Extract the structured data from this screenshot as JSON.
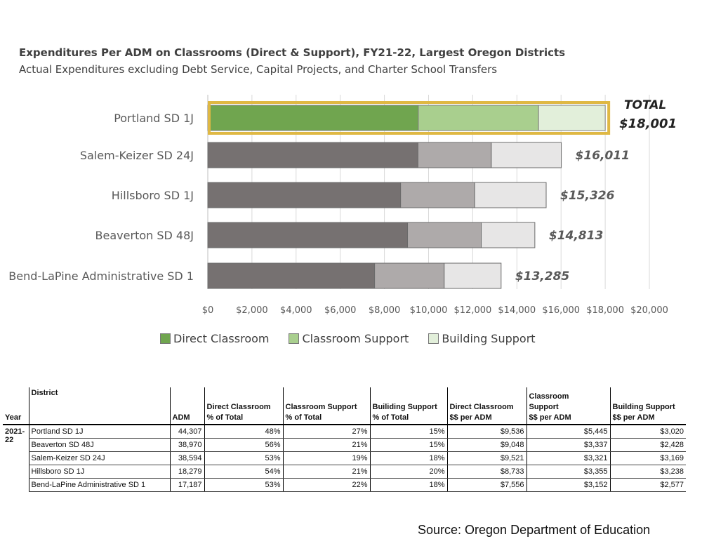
{
  "colors": {
    "highlight_direct": "#70a54f",
    "highlight_classroom": "#a9cf8e",
    "highlight_building": "#e2efda",
    "gray_direct": "#767171",
    "gray_classroom": "#aeaaaa",
    "gray_building": "#e7e6e6",
    "highlight_border": "#dfb844",
    "label_color": "#595959"
  },
  "chart_data": {
    "type": "bar",
    "orientation": "horizontal",
    "stacked": true,
    "title": "Expenditures Per ADM on Classrooms (Direct & Support), FY21-22, Largest Oregon Districts",
    "subtitle": "Actual Expenditures excluding Debt Service, Capital Projects, and Charter School Transfers",
    "categories": [
      "Portland SD 1J",
      "Salem-Keizer SD 24J",
      "Hillsboro SD 1J",
      "Beaverton SD 48J",
      "Bend-LaPine Administrative SD 1"
    ],
    "series": [
      {
        "name": "Direct Classroom",
        "values": [
          9536,
          9521,
          8733,
          9048,
          7556
        ]
      },
      {
        "name": "Classroom Support",
        "values": [
          5445,
          3321,
          3355,
          3337,
          3152
        ]
      },
      {
        "name": "Building Support",
        "values": [
          3020,
          3169,
          3238,
          2428,
          2577
        ]
      }
    ],
    "total_labels": [
      "$18,001",
      "$16,011",
      "$15,326",
      "$14,813",
      "$13,285"
    ],
    "total_caption": "TOTAL",
    "highlighted_category": "Portland SD 1J",
    "xlim": [
      0,
      20000
    ],
    "xticks": [
      0,
      2000,
      4000,
      6000,
      8000,
      10000,
      12000,
      14000,
      16000,
      18000,
      20000
    ],
    "xtick_labels": [
      "$0",
      "$2,000",
      "$4,000",
      "$6,000",
      "$8,000",
      "$10,000",
      "$12,000",
      "$14,000",
      "$16,000",
      "$18,000",
      "$20,000"
    ],
    "grid": true,
    "legend_position": "bottom",
    "xlabel": "",
    "ylabel": ""
  },
  "legend": [
    "Direct Classroom",
    "Classroom Support",
    "Building Support"
  ],
  "table": {
    "headers": {
      "year": "Year",
      "district": "District",
      "adm": "ADM",
      "direct_pct": [
        "Direct Classroom",
        "% of Total"
      ],
      "class_pct": [
        "Classroom Support",
        "% of Total"
      ],
      "build_pct": [
        "Builiding Support",
        "% of Total"
      ],
      "direct_adm": [
        "Direct Classroom",
        "$$ per ADM"
      ],
      "class_adm": [
        "Classroom",
        "Support",
        "$$ per ADM"
      ],
      "build_adm": [
        "Building Support",
        "$$ per ADM"
      ]
    },
    "year": "2021-22",
    "rows": [
      [
        "Portland SD 1J",
        "44,307",
        "48%",
        "27%",
        "15%",
        "$9,536",
        "$5,445",
        "$3,020"
      ],
      [
        "Beaverton SD 48J",
        "38,970",
        "56%",
        "21%",
        "15%",
        "$9,048",
        "$3,337",
        "$2,428"
      ],
      [
        "Salem-Keizer SD 24J",
        "38,594",
        "53%",
        "19%",
        "18%",
        "$9,521",
        "$3,321",
        "$3,169"
      ],
      [
        "Hillsboro SD 1J",
        "18,279",
        "54%",
        "21%",
        "20%",
        "$8,733",
        "$3,355",
        "$3,238"
      ],
      [
        "Bend-LaPine Administrative SD 1",
        "17,187",
        "53%",
        "22%",
        "18%",
        "$7,556",
        "$3,152",
        "$2,577"
      ]
    ]
  },
  "source": "Source: Oregon Department of Education"
}
